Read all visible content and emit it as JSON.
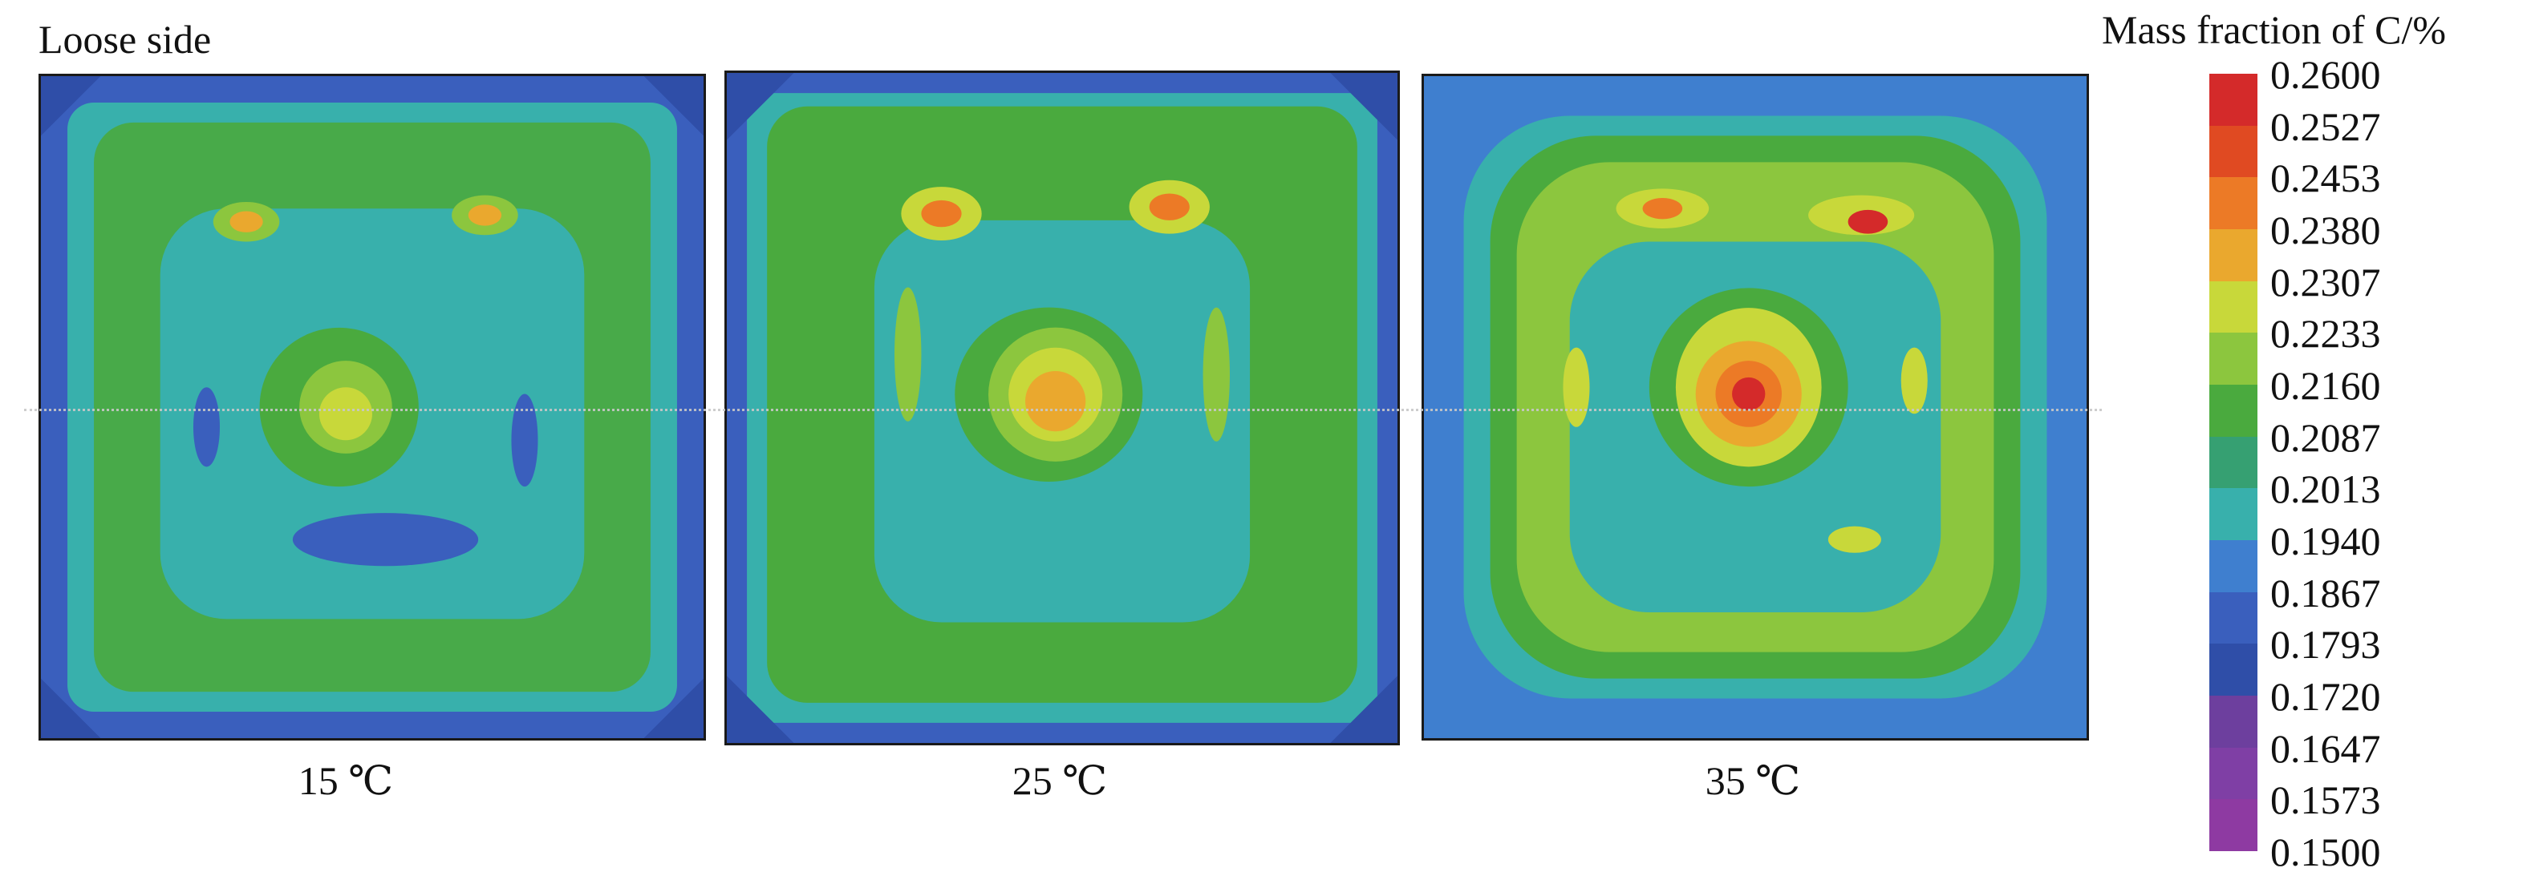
{
  "figure": {
    "side_label": "Loose side",
    "panels": [
      {
        "label": "15 ℃",
        "hotspot_level": 0.6
      },
      {
        "label": "25 ℃",
        "hotspot_level": 0.8
      },
      {
        "label": "35 ℃",
        "hotspot_level": 1.0
      }
    ]
  },
  "legend": {
    "title": "Mass fraction of C/%",
    "ticks": [
      "0.2600",
      "0.2527",
      "0.2453",
      "0.2380",
      "0.2307",
      "0.2233",
      "0.2160",
      "0.2087",
      "0.2013",
      "0.1940",
      "0.1867",
      "0.1793",
      "0.1720",
      "0.1647",
      "0.1573",
      "0.1500"
    ],
    "colors": [
      "#d42a2a",
      "#e04a22",
      "#ec7a26",
      "#eaa82e",
      "#c8d83a",
      "#8cc63e",
      "#4aaa3e",
      "#36a072",
      "#38b0ac",
      "#3f7fcf",
      "#3a5fbd",
      "#2f4ea8",
      "#6d3f9e",
      "#7f3fa5",
      "#8e3aa2"
    ]
  }
}
